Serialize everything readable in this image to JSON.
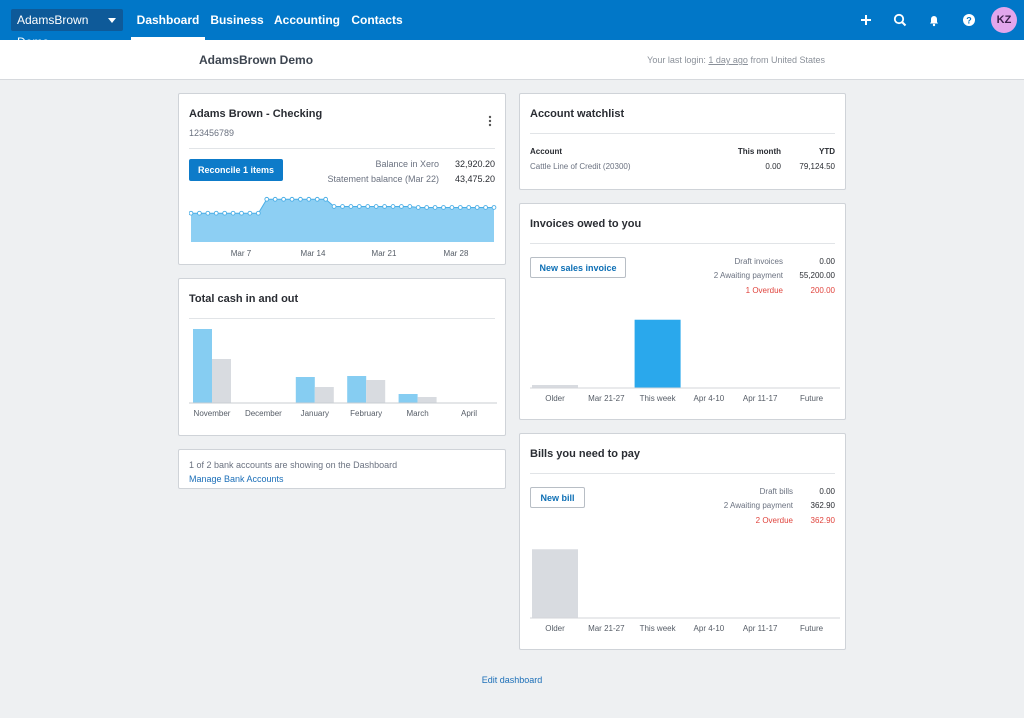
{
  "nav": {
    "org_name": "AdamsBrown Demo",
    "tabs": [
      {
        "label": "Dashboard"
      },
      {
        "label": "Business"
      },
      {
        "label": "Accounting"
      },
      {
        "label": "Contacts"
      }
    ],
    "icons": [
      "plus-icon",
      "search-icon",
      "bell-icon",
      "help-icon"
    ],
    "avatar_initials": "KZ"
  },
  "header": {
    "org_title": "AdamsBrown Demo",
    "login_prefix": "Your last login:",
    "login_when": "1 day ago",
    "login_suffix": "from United States"
  },
  "checking": {
    "title": "Adams Brown - Checking",
    "account_number": "123456789",
    "reconcile_label": "Reconcile 1 items",
    "balance_xero_label": "Balance in Xero",
    "balance_xero_value": "32,920.20",
    "statement_label": "Statement balance (Mar 22)",
    "statement_value": "43,475.20",
    "chart_data": {
      "type": "area",
      "x_ticks": [
        "Mar 7",
        "Mar 14",
        "Mar 21",
        "Mar 28"
      ],
      "values": [
        0.6,
        0.6,
        0.6,
        0.6,
        0.6,
        0.6,
        0.6,
        0.6,
        0.6,
        0.89,
        0.89,
        0.89,
        0.89,
        0.89,
        0.89,
        0.89,
        0.89,
        0.74,
        0.74,
        0.74,
        0.74,
        0.74,
        0.74,
        0.74,
        0.74,
        0.74,
        0.74,
        0.72,
        0.72,
        0.72,
        0.72,
        0.72,
        0.72,
        0.72,
        0.72,
        0.72,
        0.72
      ],
      "color": "#8dcff3"
    }
  },
  "cash": {
    "title": "Total cash in and out",
    "chart_data": {
      "type": "bar",
      "categories": [
        "November",
        "December",
        "January",
        "February",
        "March",
        "April"
      ],
      "series": [
        {
          "values": [
            74,
            0,
            26,
            27,
            9,
            0
          ],
          "color": "#86cdf2"
        },
        {
          "values": [
            44,
            0,
            16,
            23,
            6,
            0
          ],
          "color": "#d8dbe0"
        }
      ],
      "ylim": [
        0,
        80
      ]
    }
  },
  "bank_note": {
    "text": "1 of 2 bank accounts are showing on the Dashboard",
    "link": "Manage Bank Accounts"
  },
  "watchlist": {
    "title": "Account watchlist",
    "col_account": "Account",
    "col_month": "This month",
    "col_ytd": "YTD",
    "rows": [
      {
        "account": "Cattle Line of Credit (20300)",
        "month": "0.00",
        "ytd": "79,124.50"
      }
    ]
  },
  "invoices": {
    "title": "Invoices owed to you",
    "button": "New sales invoice",
    "draft_label": "Draft invoices",
    "draft_value": "0.00",
    "awaiting_label": "2 Awaiting payment",
    "awaiting_value": "55,200.00",
    "overdue_label": "1 Overdue",
    "overdue_value": "200.00",
    "chart_data": {
      "type": "bar",
      "categories": [
        "Older",
        "Mar 21-27",
        "This week",
        "Apr 4-10",
        "Apr 11-17",
        "Future"
      ],
      "values": [
        200,
        0,
        55000,
        0,
        0,
        0
      ],
      "colors": [
        "#d8dbe0",
        "#2aa8ec",
        "#2aa8ec",
        "#2aa8ec",
        "#2aa8ec",
        "#2aa8ec"
      ],
      "ylim": [
        0,
        58000
      ]
    }
  },
  "bills": {
    "title": "Bills you need to pay",
    "button": "New bill",
    "draft_label": "Draft bills",
    "draft_value": "0.00",
    "awaiting_label": "2 Awaiting payment",
    "awaiting_value": "362.90",
    "overdue_label": "2 Overdue",
    "overdue_value": "362.90",
    "chart_data": {
      "type": "bar",
      "categories": [
        "Older",
        "Mar 21-27",
        "This week",
        "Apr 4-10",
        "Apr 11-17",
        "Future"
      ],
      "values": [
        362.9,
        0,
        0,
        0,
        0,
        0
      ],
      "colors": [
        "#d8dbe0",
        "#d8dbe0",
        "#d8dbe0",
        "#d8dbe0",
        "#d8dbe0",
        "#d8dbe0"
      ],
      "ylim": [
        0,
        380
      ]
    }
  },
  "footer": {
    "edit_link": "Edit dashboard"
  }
}
